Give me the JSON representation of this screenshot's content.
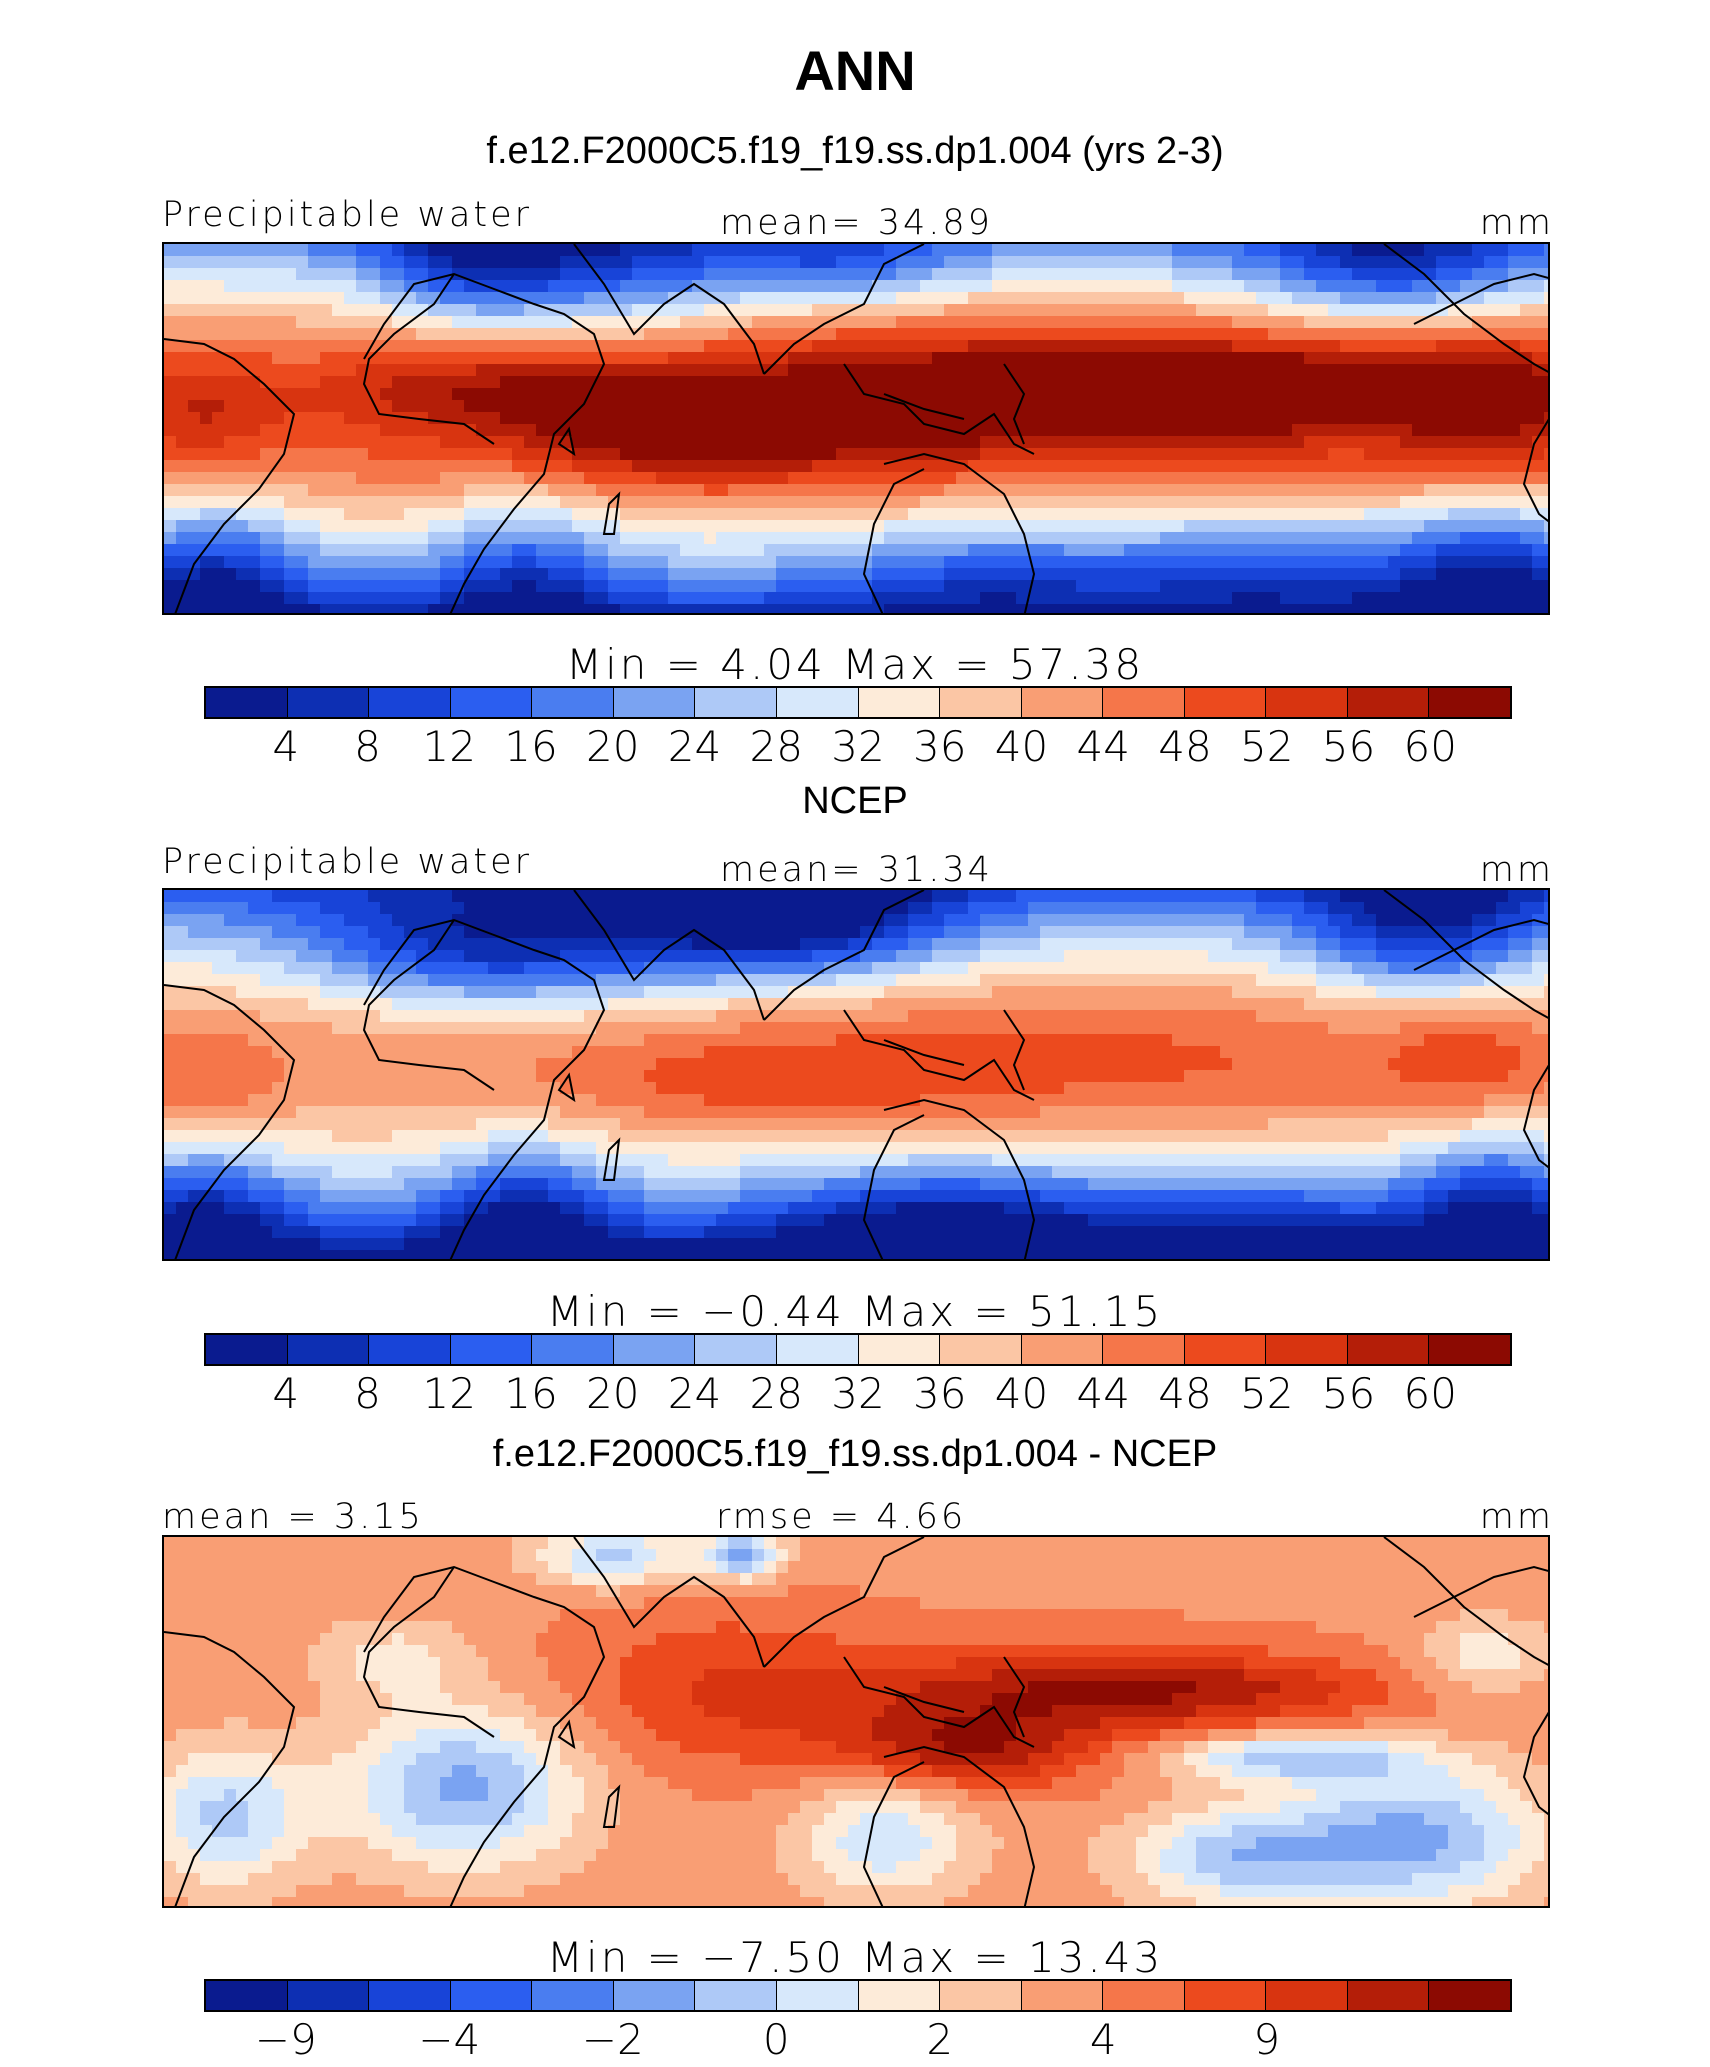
{
  "page": {
    "title": "ANN"
  },
  "colormap": [
    "#0a1b8f",
    "#0d2fb3",
    "#1844d8",
    "#2b5ef0",
    "#4a7df0",
    "#7aa3f2",
    "#aec9f7",
    "#d7e8fb",
    "#fdebd9",
    "#fbc6a5",
    "#f99e74",
    "#f5764a",
    "#ec4a1e",
    "#d83410",
    "#b41e08",
    "#8c0a02"
  ],
  "panels": [
    {
      "id": "model",
      "title": "f.e12.F2000C5.f19_f19.ss.dp1.004 (yrs 2-3)",
      "left_label": "Precipitable water",
      "center_label": "mean=  34.89",
      "units": "mm",
      "minmax_label": "Min =    4.04 Max =   57.38",
      "tick_labels": [
        "4",
        "8",
        "12",
        "16",
        "20",
        "24",
        "28",
        "32",
        "36",
        "40",
        "44",
        "48",
        "52",
        "56",
        "60"
      ]
    },
    {
      "id": "obs",
      "title": "NCEP",
      "left_label": "Precipitable water",
      "center_label": "mean=  31.34",
      "units": "mm",
      "minmax_label": "Min =  −0.44 Max =   51.15",
      "tick_labels": [
        "4",
        "8",
        "12",
        "16",
        "20",
        "24",
        "28",
        "32",
        "36",
        "40",
        "44",
        "48",
        "52",
        "56",
        "60"
      ]
    },
    {
      "id": "diff",
      "title": "f.e12.F2000C5.f19_f19.ss.dp1.004 - NCEP",
      "left_label": "mean =   3.15",
      "center_label": "rmse =    4.66",
      "units": "mm",
      "minmax_label": "Min =  −7.50 Max =   13.43",
      "tick_labels": [
        "−9",
        "",
        "−4",
        "",
        "−2",
        "",
        "0",
        "",
        "2",
        "",
        "4",
        "",
        "9",
        "",
        "",
        ""
      ]
    }
  ],
  "chart_data": [
    {
      "type": "heatmap",
      "title": "f.e12.F2000C5.f19_f19.ss.dp1.004 (yrs 2-3)",
      "variable": "Precipitable water",
      "units": "mm",
      "mean": 34.89,
      "min": 4.04,
      "max": 57.38,
      "contour_levels": [
        4,
        8,
        12,
        16,
        20,
        24,
        28,
        32,
        36,
        40,
        44,
        48,
        52,
        56,
        60
      ],
      "grid": false
    },
    {
      "type": "heatmap",
      "title": "NCEP",
      "variable": "Precipitable water",
      "units": "mm",
      "mean": 31.34,
      "min": -0.44,
      "max": 51.15,
      "contour_levels": [
        4,
        8,
        12,
        16,
        20,
        24,
        28,
        32,
        36,
        40,
        44,
        48,
        52,
        56,
        60
      ],
      "grid": false
    },
    {
      "type": "heatmap",
      "title": "f.e12.F2000C5.f19_f19.ss.dp1.004 - NCEP",
      "variable": "Precipitable water difference",
      "units": "mm",
      "mean": 3.15,
      "rmse": 4.66,
      "min": -7.5,
      "max": 13.43,
      "contour_levels": [
        -9,
        -4,
        -2,
        0,
        2,
        4,
        9
      ],
      "grid": false
    }
  ]
}
